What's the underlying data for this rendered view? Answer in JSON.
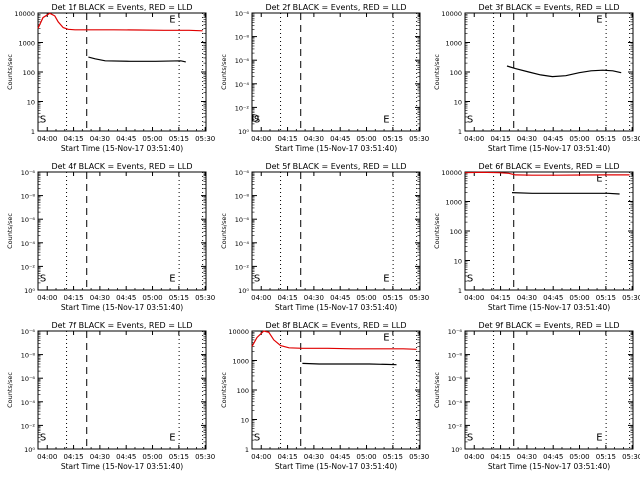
{
  "figure": {
    "background": "#ffffff",
    "axis_color": "#000000",
    "events_color": "#000000",
    "lld_color": "#e00000"
  },
  "chart_data": [
    {
      "type": "line",
      "title": "Det 1f BLACK = Events, RED = LLD",
      "xlabel": "Start Time (15-Nov-17 03:51:40)",
      "ylabel": "Counts/sec",
      "x_tick_labels": [
        "04:00",
        "04:15",
        "04:30",
        "04:45",
        "05:00",
        "05:15",
        "05:30"
      ],
      "y_tick_labels": [
        "1",
        "10",
        "100",
        "1000",
        "10000"
      ],
      "ylim": [
        1,
        10000
      ],
      "y_scale": "log",
      "markers": {
        "S": "S",
        "E": "E",
        "D": ""
      },
      "series": [
        {
          "color": "#e00000",
          "values": [
            [
              0.0,
              3000
            ],
            [
              0.03,
              7000
            ],
            [
              0.07,
              9800
            ],
            [
              0.1,
              8000
            ],
            [
              0.12,
              5000
            ],
            [
              0.15,
              3200
            ],
            [
              0.18,
              2800
            ],
            [
              0.22,
              2700
            ],
            [
              0.3,
              2700
            ],
            [
              0.45,
              2700
            ],
            [
              0.6,
              2650
            ],
            [
              0.75,
              2600
            ],
            [
              0.9,
              2600
            ],
            [
              0.98,
              2500
            ]
          ]
        },
        {
          "color": "#000000",
          "values": [
            [
              0.3,
              320
            ],
            [
              0.34,
              280
            ],
            [
              0.4,
              240
            ],
            [
              0.55,
              230
            ],
            [
              0.7,
              230
            ],
            [
              0.85,
              240
            ],
            [
              0.88,
              220
            ]
          ]
        }
      ]
    },
    {
      "type": "line",
      "title": "Det 2f BLACK = Events, RED = LLD",
      "xlabel": "Start Time (15-Nov-17 03:51:40)",
      "ylabel": "Counts/sec",
      "x_tick_labels": [
        "04:00",
        "04:15",
        "04:30",
        "04:45",
        "05:00",
        "05:15",
        "05:30"
      ],
      "y_tick_labels": [
        "10⁰",
        "10⁻²",
        "10⁻⁴",
        "10⁻⁶",
        "10⁻⁸",
        "10⁻⁶"
      ],
      "markers": {
        "S": "S",
        "E": "E",
        "D": "D"
      },
      "series": []
    },
    {
      "type": "line",
      "title": "Det 3f BLACK = Events, RED = LLD",
      "xlabel": "Start Time (15-Nov-17 03:51:40)",
      "ylabel": "Counts/sec",
      "x_tick_labels": [
        "04:00",
        "04:15",
        "04:30",
        "04:45",
        "05:00",
        "05:15",
        "05:30"
      ],
      "y_tick_labels": [
        "1",
        "10",
        "100",
        "1000",
        "10000"
      ],
      "ylim": [
        1,
        10000
      ],
      "y_scale": "log",
      "markers": {
        "S": "S",
        "E": "E",
        "D": ""
      },
      "series": [
        {
          "color": "#000000",
          "values": [
            [
              0.25,
              160
            ],
            [
              0.3,
              130
            ],
            [
              0.38,
              100
            ],
            [
              0.45,
              80
            ],
            [
              0.52,
              70
            ],
            [
              0.6,
              75
            ],
            [
              0.68,
              95
            ],
            [
              0.75,
              110
            ],
            [
              0.82,
              115
            ],
            [
              0.88,
              110
            ],
            [
              0.93,
              95
            ]
          ]
        }
      ]
    },
    {
      "type": "line",
      "title": "Det 4f BLACK = Events, RED = LLD",
      "xlabel": "Start Time (15-Nov-17 03:51:40)",
      "ylabel": "Counts/sec",
      "x_tick_labels": [
        "04:00",
        "04:15",
        "04:30",
        "04:45",
        "05:00",
        "05:15",
        "05:30"
      ],
      "y_tick_labels": [
        "10⁰",
        "10⁻²",
        "10⁻⁴",
        "10⁻⁶",
        "10⁻⁸",
        "10⁻⁶"
      ],
      "markers": {
        "S": "S",
        "E": "E",
        "D": ""
      },
      "series": []
    },
    {
      "type": "line",
      "title": "Det 5f BLACK = Events, RED = LLD",
      "xlabel": "Start Time (15-Nov-17 03:51:40)",
      "ylabel": "Counts/sec",
      "x_tick_labels": [
        "04:00",
        "04:15",
        "04:30",
        "04:45",
        "05:00",
        "05:15",
        "05:30"
      ],
      "y_tick_labels": [
        "10⁰",
        "10⁻²",
        "10⁻⁴",
        "10⁻⁶",
        "10⁻⁸",
        "10⁻⁶"
      ],
      "markers": {
        "S": "S",
        "E": "E",
        "D": ""
      },
      "series": []
    },
    {
      "type": "line",
      "title": "Det 6f BLACK = Events, RED = LLD",
      "xlabel": "Start Time (15-Nov-17 03:51:40)",
      "ylabel": "Counts/sec",
      "x_tick_labels": [
        "04:00",
        "04:15",
        "04:30",
        "04:45",
        "05:00",
        "05:15",
        "05:30"
      ],
      "y_tick_labels": [
        "1",
        "10",
        "100",
        "1000",
        "10000"
      ],
      "ylim": [
        1,
        10000
      ],
      "y_scale": "log",
      "markers": {
        "S": "S",
        "E": "E",
        "D": ""
      },
      "series": [
        {
          "color": "#e00000",
          "values": [
            [
              0.0,
              9500
            ],
            [
              0.1,
              9800
            ],
            [
              0.2,
              9500
            ],
            [
              0.26,
              9000
            ],
            [
              0.3,
              8000
            ],
            [
              0.4,
              7800
            ],
            [
              0.55,
              7800
            ],
            [
              0.7,
              7900
            ],
            [
              0.85,
              8000
            ],
            [
              0.98,
              8000
            ]
          ]
        },
        {
          "color": "#000000",
          "values": [
            [
              0.28,
              2000
            ],
            [
              0.4,
              1900
            ],
            [
              0.55,
              1900
            ],
            [
              0.7,
              1900
            ],
            [
              0.85,
              1900
            ],
            [
              0.92,
              1800
            ]
          ]
        }
      ]
    },
    {
      "type": "line",
      "title": "Det 7f BLACK = Events, RED = LLD",
      "xlabel": "Start Time (15-Nov-17 03:51:40)",
      "ylabel": "Counts/sec",
      "x_tick_labels": [
        "04:00",
        "04:15",
        "04:30",
        "04:45",
        "05:00",
        "05:15",
        "05:30"
      ],
      "y_tick_labels": [
        "10⁰",
        "10⁻²",
        "10⁻⁴",
        "10⁻⁶",
        "10⁻⁸",
        "10⁻⁶"
      ],
      "markers": {
        "S": "S",
        "E": "E",
        "D": ""
      },
      "series": []
    },
    {
      "type": "line",
      "title": "Det 8f BLACK = Events, RED = LLD",
      "xlabel": "Start Time (15-Nov-17 03:51:40)",
      "ylabel": "Counts/sec",
      "x_tick_labels": [
        "04:00",
        "04:15",
        "04:30",
        "04:45",
        "05:00",
        "05:15",
        "05:30"
      ],
      "y_tick_labels": [
        "1",
        "10",
        "100",
        "1000",
        "10000"
      ],
      "ylim": [
        1,
        10000
      ],
      "y_scale": "log",
      "markers": {
        "S": "S",
        "E": "E",
        "D": ""
      },
      "series": [
        {
          "color": "#e00000",
          "values": [
            [
              0.0,
              3000
            ],
            [
              0.03,
              6000
            ],
            [
              0.07,
              10000
            ],
            [
              0.1,
              9000
            ],
            [
              0.13,
              5000
            ],
            [
              0.17,
              3200
            ],
            [
              0.22,
              2700
            ],
            [
              0.3,
              2600
            ],
            [
              0.45,
              2600
            ],
            [
              0.6,
              2500
            ],
            [
              0.75,
              2500
            ],
            [
              0.9,
              2500
            ],
            [
              0.98,
              2400
            ]
          ]
        },
        {
          "color": "#000000",
          "values": [
            [
              0.3,
              800
            ],
            [
              0.4,
              760
            ],
            [
              0.55,
              760
            ],
            [
              0.7,
              760
            ],
            [
              0.8,
              740
            ],
            [
              0.86,
              720
            ]
          ]
        }
      ]
    },
    {
      "type": "line",
      "title": "Det 9f BLACK = Events, RED = LLD",
      "xlabel": "Start Time (15-Nov-17 03:51:40)",
      "ylabel": "Counts/sec",
      "x_tick_labels": [
        "04:00",
        "04:15",
        "04:30",
        "04:45",
        "05:00",
        "05:15",
        "05:30"
      ],
      "y_tick_labels": [
        "10⁰",
        "10⁻²",
        "10⁻⁴",
        "10⁻⁶",
        "10⁻⁸",
        "10⁻⁶"
      ],
      "markers": {
        "S": "S",
        "E": "E",
        "D": ""
      },
      "series": []
    }
  ]
}
